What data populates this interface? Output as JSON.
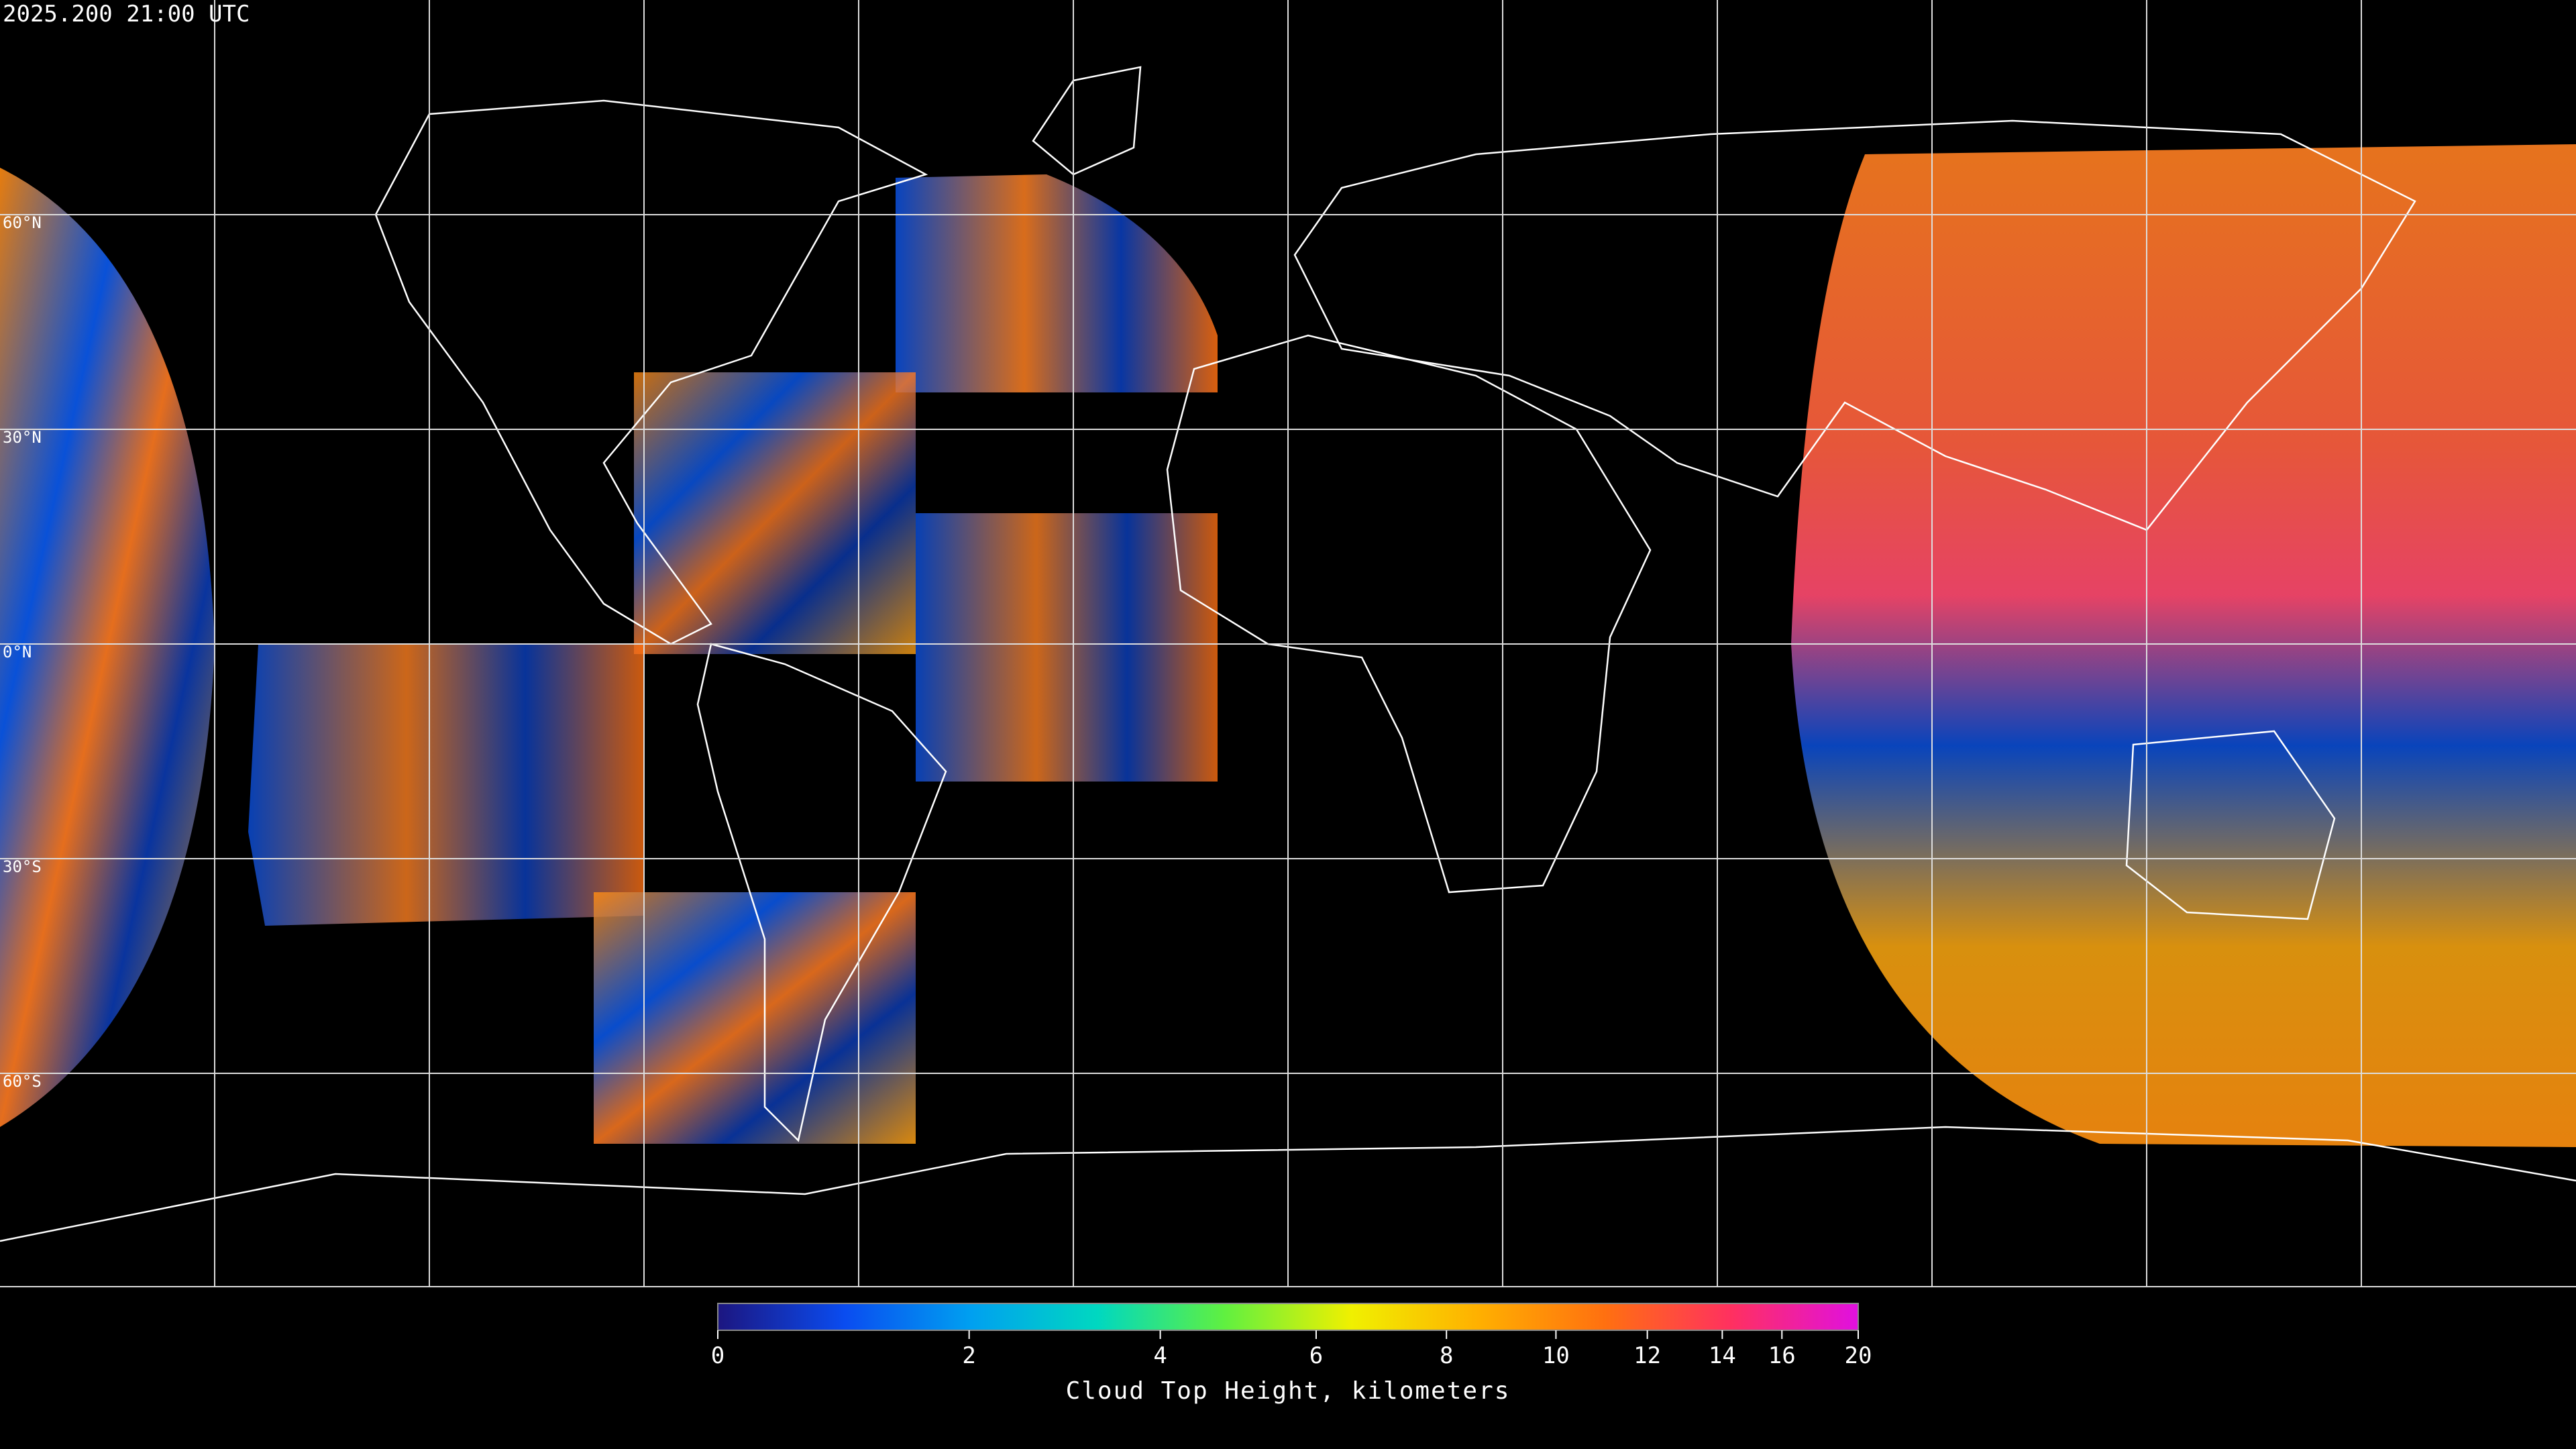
{
  "header": {
    "timestamp": "2025.200 21:00 UTC"
  },
  "map": {
    "latitude_labels": [
      "60°N",
      "30°N",
      "0°N",
      "30°S",
      "60°S"
    ]
  },
  "colorbar": {
    "label": "Cloud Top Height, kilometers",
    "range": [
      0,
      20
    ],
    "ticks": [
      0,
      2,
      4,
      6,
      8,
      10,
      12,
      14,
      16,
      20
    ],
    "colors": [
      "#1c1680",
      "#0a4cf0",
      "#00a0f0",
      "#00d8c0",
      "#60f040",
      "#f0f000",
      "#ffb000",
      "#ff7010",
      "#ff3060",
      "#e010e0"
    ]
  }
}
